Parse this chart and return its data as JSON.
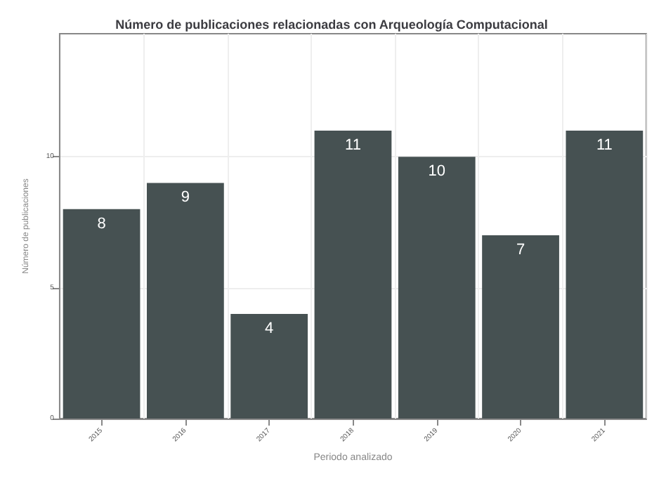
{
  "chart_data": {
    "type": "bar",
    "title": "Número de publicaciones relacionadas con Arqueología Computacional",
    "xlabel": "Periodo analizado",
    "ylabel": "Número de publicaciones",
    "categories": [
      "2015",
      "2016",
      "2017",
      "2018",
      "2019",
      "2020",
      "2021"
    ],
    "values": [
      8,
      9,
      4,
      11,
      10,
      7,
      11
    ],
    "color": "#465152",
    "ylim": [
      0,
      14.7
    ],
    "yticks": [
      0,
      5,
      10
    ],
    "grid": true,
    "data_labels": true
  }
}
